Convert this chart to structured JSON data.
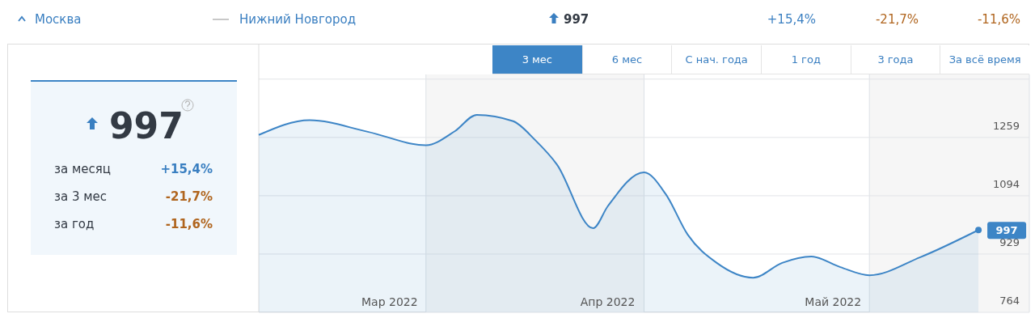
{
  "chart_data": {
    "type": "area",
    "x": [
      "2022-03-09",
      "2022-03-16",
      "2022-03-24",
      "2022-04-01",
      "2022-04-05",
      "2022-04-08",
      "2022-04-13",
      "2022-04-16",
      "2022-04-19",
      "2022-04-24",
      "2022-04-26",
      "2022-05-01",
      "2022-05-04",
      "2022-05-07",
      "2022-05-11",
      "2022-05-16",
      "2022-05-20",
      "2022-05-24",
      "2022-05-28",
      "2022-06-01",
      "2022-06-08",
      "2022-06-16"
    ],
    "series": [
      {
        "color": "#3d85c6",
        "values": [
          1266,
          1308,
          1275,
          1237,
          1277,
          1323,
          1305,
          1252,
          1183,
          1002,
          1064,
          1160,
          1098,
          984,
          904,
          862,
          904,
          922,
          892,
          869,
          920,
          997
        ]
      }
    ],
    "xlim": [
      "2022-03-09",
      "2022-06-23"
    ],
    "xticks": [
      {
        "value": "2022-03-27",
        "label": "Мар 2022"
      },
      {
        "value": "2022-04-26",
        "label": "Апр 2022"
      },
      {
        "value": "2022-05-27",
        "label": "Май 2022"
      }
    ],
    "ylim": [
      764,
      1522
    ],
    "yticks": [
      764,
      929,
      1094,
      1259,
      {
        "value": 1424,
        "label": null
      }
    ],
    "grid": "y",
    "bands": [
      {
        "axis": "x",
        "from": "2022-04-01",
        "to": "2022-05-01",
        "color": "#f6f6f6"
      },
      {
        "axis": "x",
        "from": "2022-06-01",
        "to": "2022-06-23",
        "color": "#f6f6f6"
      }
    ],
    "annotations": [
      "Москва",
      "Нижний Новгород",
      "997",
      "+15,4%",
      "-21,7%",
      "-11,6%",
      "3 мес",
      "6 мес",
      "С нач. года",
      "1 год",
      "3 года",
      "За всё время",
      "997",
      "за месяц",
      "+15,4%",
      "за 3 мес",
      "-21,7%",
      "за год",
      "-11,6%",
      {
        "text": "997",
        "x": "2022-06-16",
        "y": 997
      }
    ]
  }
}
